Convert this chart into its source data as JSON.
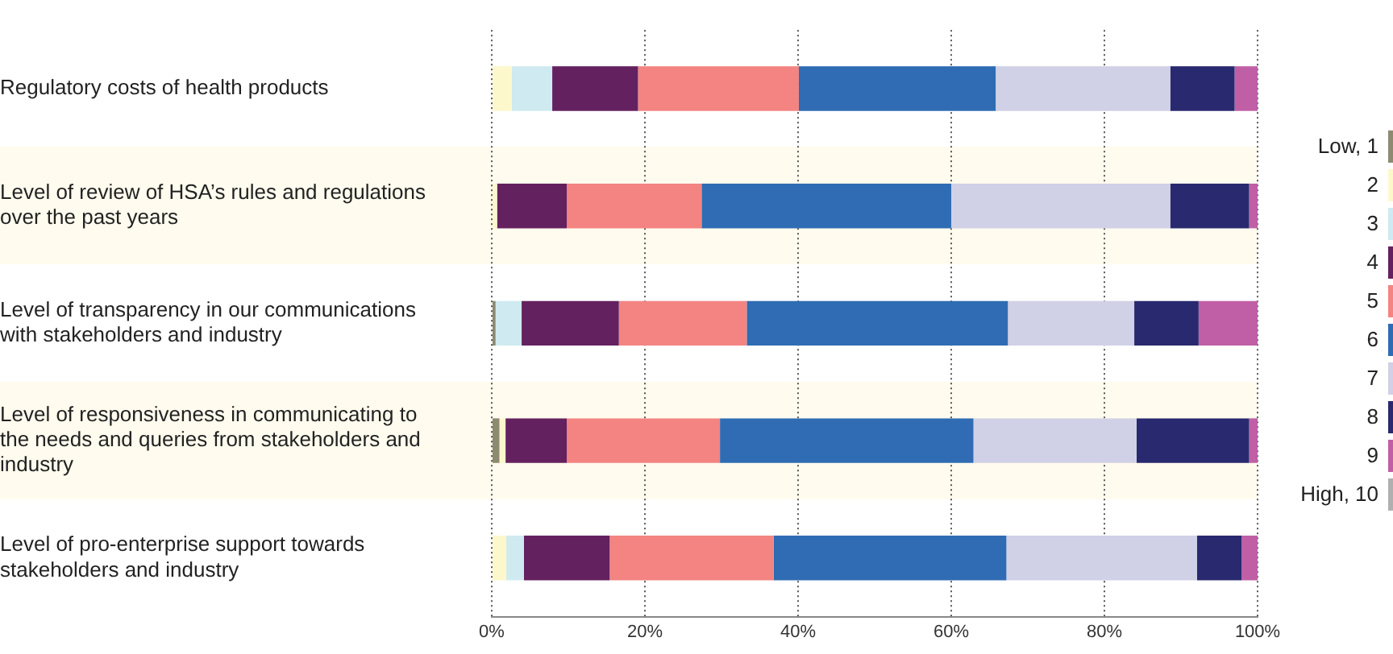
{
  "chart_data": {
    "type": "bar",
    "orientation": "horizontal",
    "stacked": true,
    "categories": [
      "Regulatory costs of health products",
      "Level of review of HSA’s rules and regulations over the past years",
      "Level of transparency in our communications with stakeholders and industry",
      "Level of responsiveness in communicating to the needs and queries from stakeholders and industry",
      "Level of pro-enterprise support towards stakeholders and industry"
    ],
    "series": [
      {
        "name": "Low, 1",
        "color": "#8c8a70",
        "values": [
          0,
          0,
          0.5,
          1.0,
          0
        ]
      },
      {
        "name": "2",
        "color": "#fdf8cc",
        "values": [
          2.6,
          0.7,
          0,
          0.8,
          1.9
        ]
      },
      {
        "name": "3",
        "color": "#cfeaf1",
        "values": [
          5.3,
          0,
          3.4,
          0,
          2.3
        ]
      },
      {
        "name": "4",
        "color": "#64215f",
        "values": [
          11.2,
          9.1,
          12.7,
          8.0,
          11.2
        ]
      },
      {
        "name": "5",
        "color": "#f38482",
        "values": [
          21.0,
          17.6,
          16.7,
          20.0,
          21.4
        ]
      },
      {
        "name": "6",
        "color": "#2f6cb3",
        "values": [
          25.7,
          32.6,
          34.1,
          33.1,
          30.4
        ]
      },
      {
        "name": "7",
        "color": "#d0d0e6",
        "values": [
          22.8,
          28.6,
          16.5,
          21.3,
          24.9
        ]
      },
      {
        "name": "8",
        "color": "#29296f",
        "values": [
          8.4,
          10.3,
          8.4,
          14.7,
          5.8
        ]
      },
      {
        "name": "9",
        "color": "#c05fa6",
        "values": [
          3.0,
          1.1,
          7.7,
          1.1,
          2.1
        ]
      },
      {
        "name": "High, 10",
        "color": "#b0b0b0",
        "values": [
          0,
          0,
          0,
          0,
          0
        ]
      }
    ],
    "xlim": [
      0,
      100
    ],
    "xticks": [
      {
        "value": 0,
        "label": "0%"
      },
      {
        "value": 20,
        "label": "20%"
      },
      {
        "value": 40,
        "label": "40%"
      },
      {
        "value": 60,
        "label": "60%"
      },
      {
        "value": 80,
        "label": "80%"
      },
      {
        "value": 100,
        "label": "100%"
      }
    ],
    "grid": "x",
    "legend": "right"
  }
}
